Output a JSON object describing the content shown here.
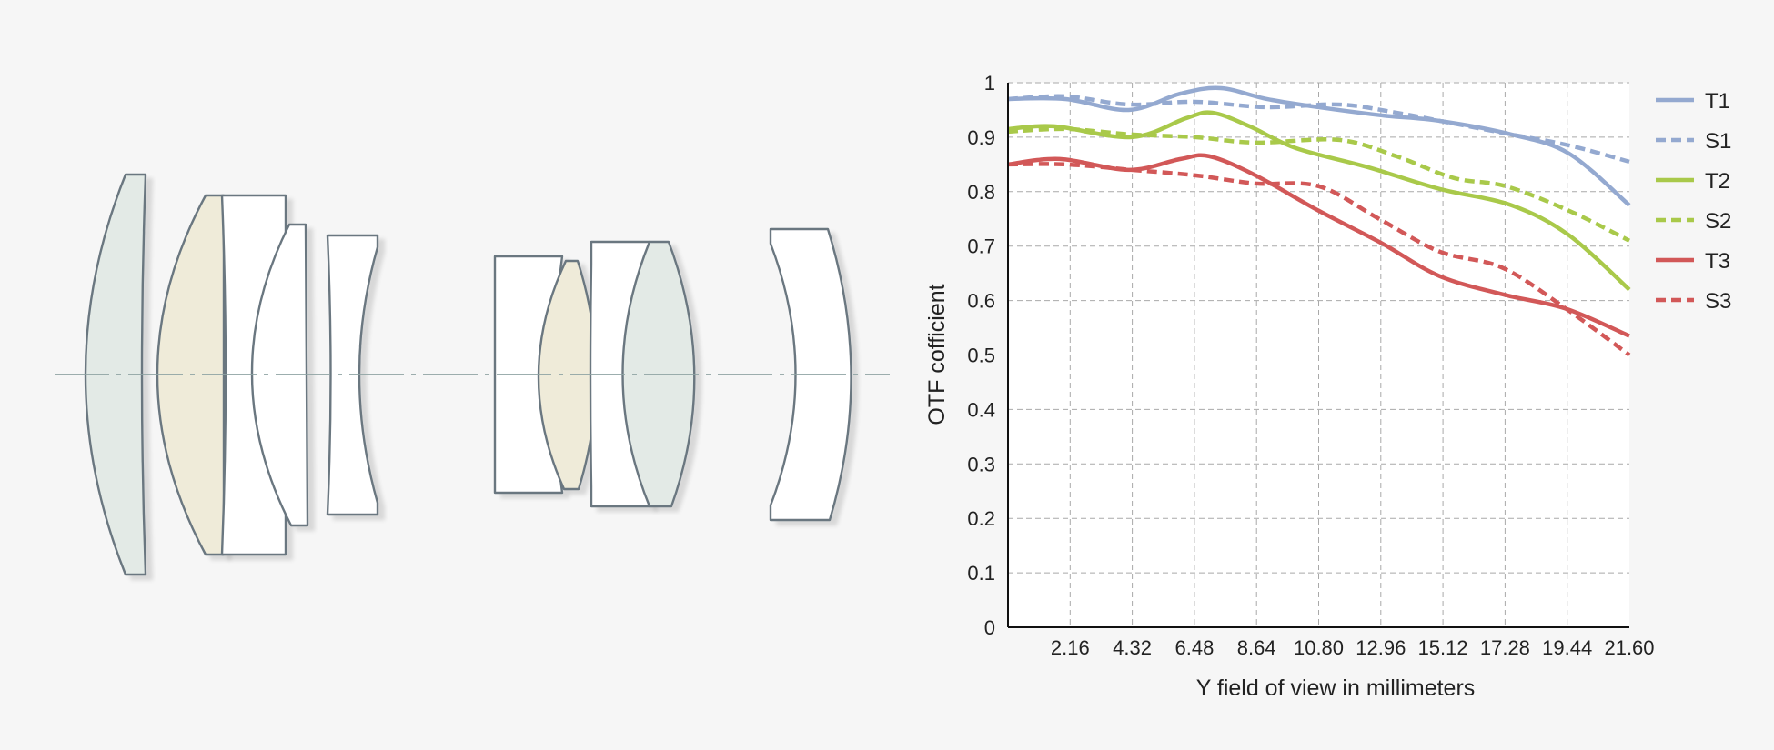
{
  "colors": {
    "background": "#f6f6f6",
    "plot_background": "#ffffff",
    "grid": "#a9a9a9",
    "lens_outline": "#6b7780",
    "lens_fill_green": "#e3eae6",
    "lens_fill_beige": "#efebd9",
    "lens_fill_white": "#ffffff",
    "optical_axis": "#8fa3a3",
    "series_blue": "#94a9d0",
    "series_green": "#a9c94a",
    "series_red": "#d25858"
  },
  "lens_diagram": {
    "elements": [
      {
        "name": "lens-element-1",
        "fill": "green"
      },
      {
        "name": "lens-element-2",
        "fill": "beige"
      },
      {
        "name": "lens-element-3",
        "fill": "white"
      },
      {
        "name": "lens-element-4",
        "fill": "white"
      },
      {
        "name": "lens-element-5",
        "fill": "white"
      },
      {
        "name": "lens-element-6",
        "fill": "white"
      },
      {
        "name": "lens-element-7",
        "fill": "beige"
      },
      {
        "name": "lens-element-8",
        "fill": "white"
      },
      {
        "name": "lens-element-9",
        "fill": "green"
      },
      {
        "name": "lens-element-10",
        "fill": "white"
      }
    ]
  },
  "chart_data": {
    "type": "line",
    "xlabel": "Y field of view in millimeters",
    "ylabel": "OTF cofficient",
    "xlim": [
      0,
      21.6
    ],
    "ylim": [
      0,
      1
    ],
    "x_ticks": [
      "2.16",
      "4.32",
      "6.48",
      "8.64",
      "10.80",
      "12.96",
      "15.12",
      "17.28",
      "19.44",
      "21.60"
    ],
    "x_tick_values": [
      2.16,
      4.32,
      6.48,
      8.64,
      10.8,
      12.96,
      15.12,
      17.28,
      19.44,
      21.6
    ],
    "y_ticks": [
      "0",
      "0.1",
      "0.2",
      "0.3",
      "0.4",
      "0.5",
      "0.6",
      "0.7",
      "0.8",
      "0.9",
      "1"
    ],
    "y_tick_values": [
      0,
      0.1,
      0.2,
      0.3,
      0.4,
      0.5,
      0.6,
      0.7,
      0.8,
      0.9,
      1.0
    ],
    "grid": true,
    "legend_position": "right",
    "series": [
      {
        "name": "T1",
        "color": "#94a9d0",
        "style": "solid",
        "x": [
          0,
          2.0,
          4.2,
          6.0,
          7.4,
          9.0,
          10.8,
          13.0,
          15.0,
          17.5,
          19.5,
          21.6
        ],
        "y": [
          0.97,
          0.97,
          0.95,
          0.98,
          0.99,
          0.97,
          0.955,
          0.94,
          0.93,
          0.905,
          0.87,
          0.775
        ]
      },
      {
        "name": "S1",
        "color": "#94a9d0",
        "style": "dashed",
        "x": [
          0,
          2.0,
          4.2,
          6.5,
          9.0,
          11.5,
          13.5,
          15.5,
          17.5,
          19.5,
          21.6
        ],
        "y": [
          0.97,
          0.975,
          0.96,
          0.965,
          0.955,
          0.96,
          0.945,
          0.925,
          0.905,
          0.885,
          0.855
        ]
      },
      {
        "name": "T2",
        "color": "#a9c94a",
        "style": "solid",
        "x": [
          0,
          1.6,
          4.3,
          6.2,
          7.1,
          8.4,
          10.0,
          12.5,
          15.0,
          17.5,
          19.5,
          21.6
        ],
        "y": [
          0.915,
          0.92,
          0.9,
          0.935,
          0.945,
          0.92,
          0.88,
          0.845,
          0.805,
          0.775,
          0.72,
          0.62
        ]
      },
      {
        "name": "S2",
        "color": "#a9c94a",
        "style": "dashed",
        "x": [
          0,
          2.0,
          4.3,
          6.5,
          8.6,
          11.5,
          13.5,
          15.5,
          17.3,
          19.5,
          21.6
        ],
        "y": [
          0.91,
          0.915,
          0.905,
          0.9,
          0.89,
          0.895,
          0.865,
          0.825,
          0.81,
          0.765,
          0.71
        ]
      },
      {
        "name": "T3",
        "color": "#d25858",
        "style": "solid",
        "x": [
          0,
          1.8,
          4.2,
          6.0,
          7.0,
          8.6,
          10.8,
          13.0,
          15.0,
          17.3,
          19.4,
          21.6
        ],
        "y": [
          0.85,
          0.86,
          0.84,
          0.86,
          0.865,
          0.83,
          0.765,
          0.705,
          0.645,
          0.61,
          0.585,
          0.535
        ]
      },
      {
        "name": "S3",
        "color": "#d25858",
        "style": "dashed",
        "x": [
          0,
          2.0,
          4.3,
          6.5,
          8.6,
          10.8,
          12.9,
          15.0,
          17.2,
          19.4,
          21.6
        ],
        "y": [
          0.85,
          0.85,
          0.84,
          0.83,
          0.815,
          0.81,
          0.75,
          0.69,
          0.66,
          0.585,
          0.5
        ]
      }
    ]
  }
}
